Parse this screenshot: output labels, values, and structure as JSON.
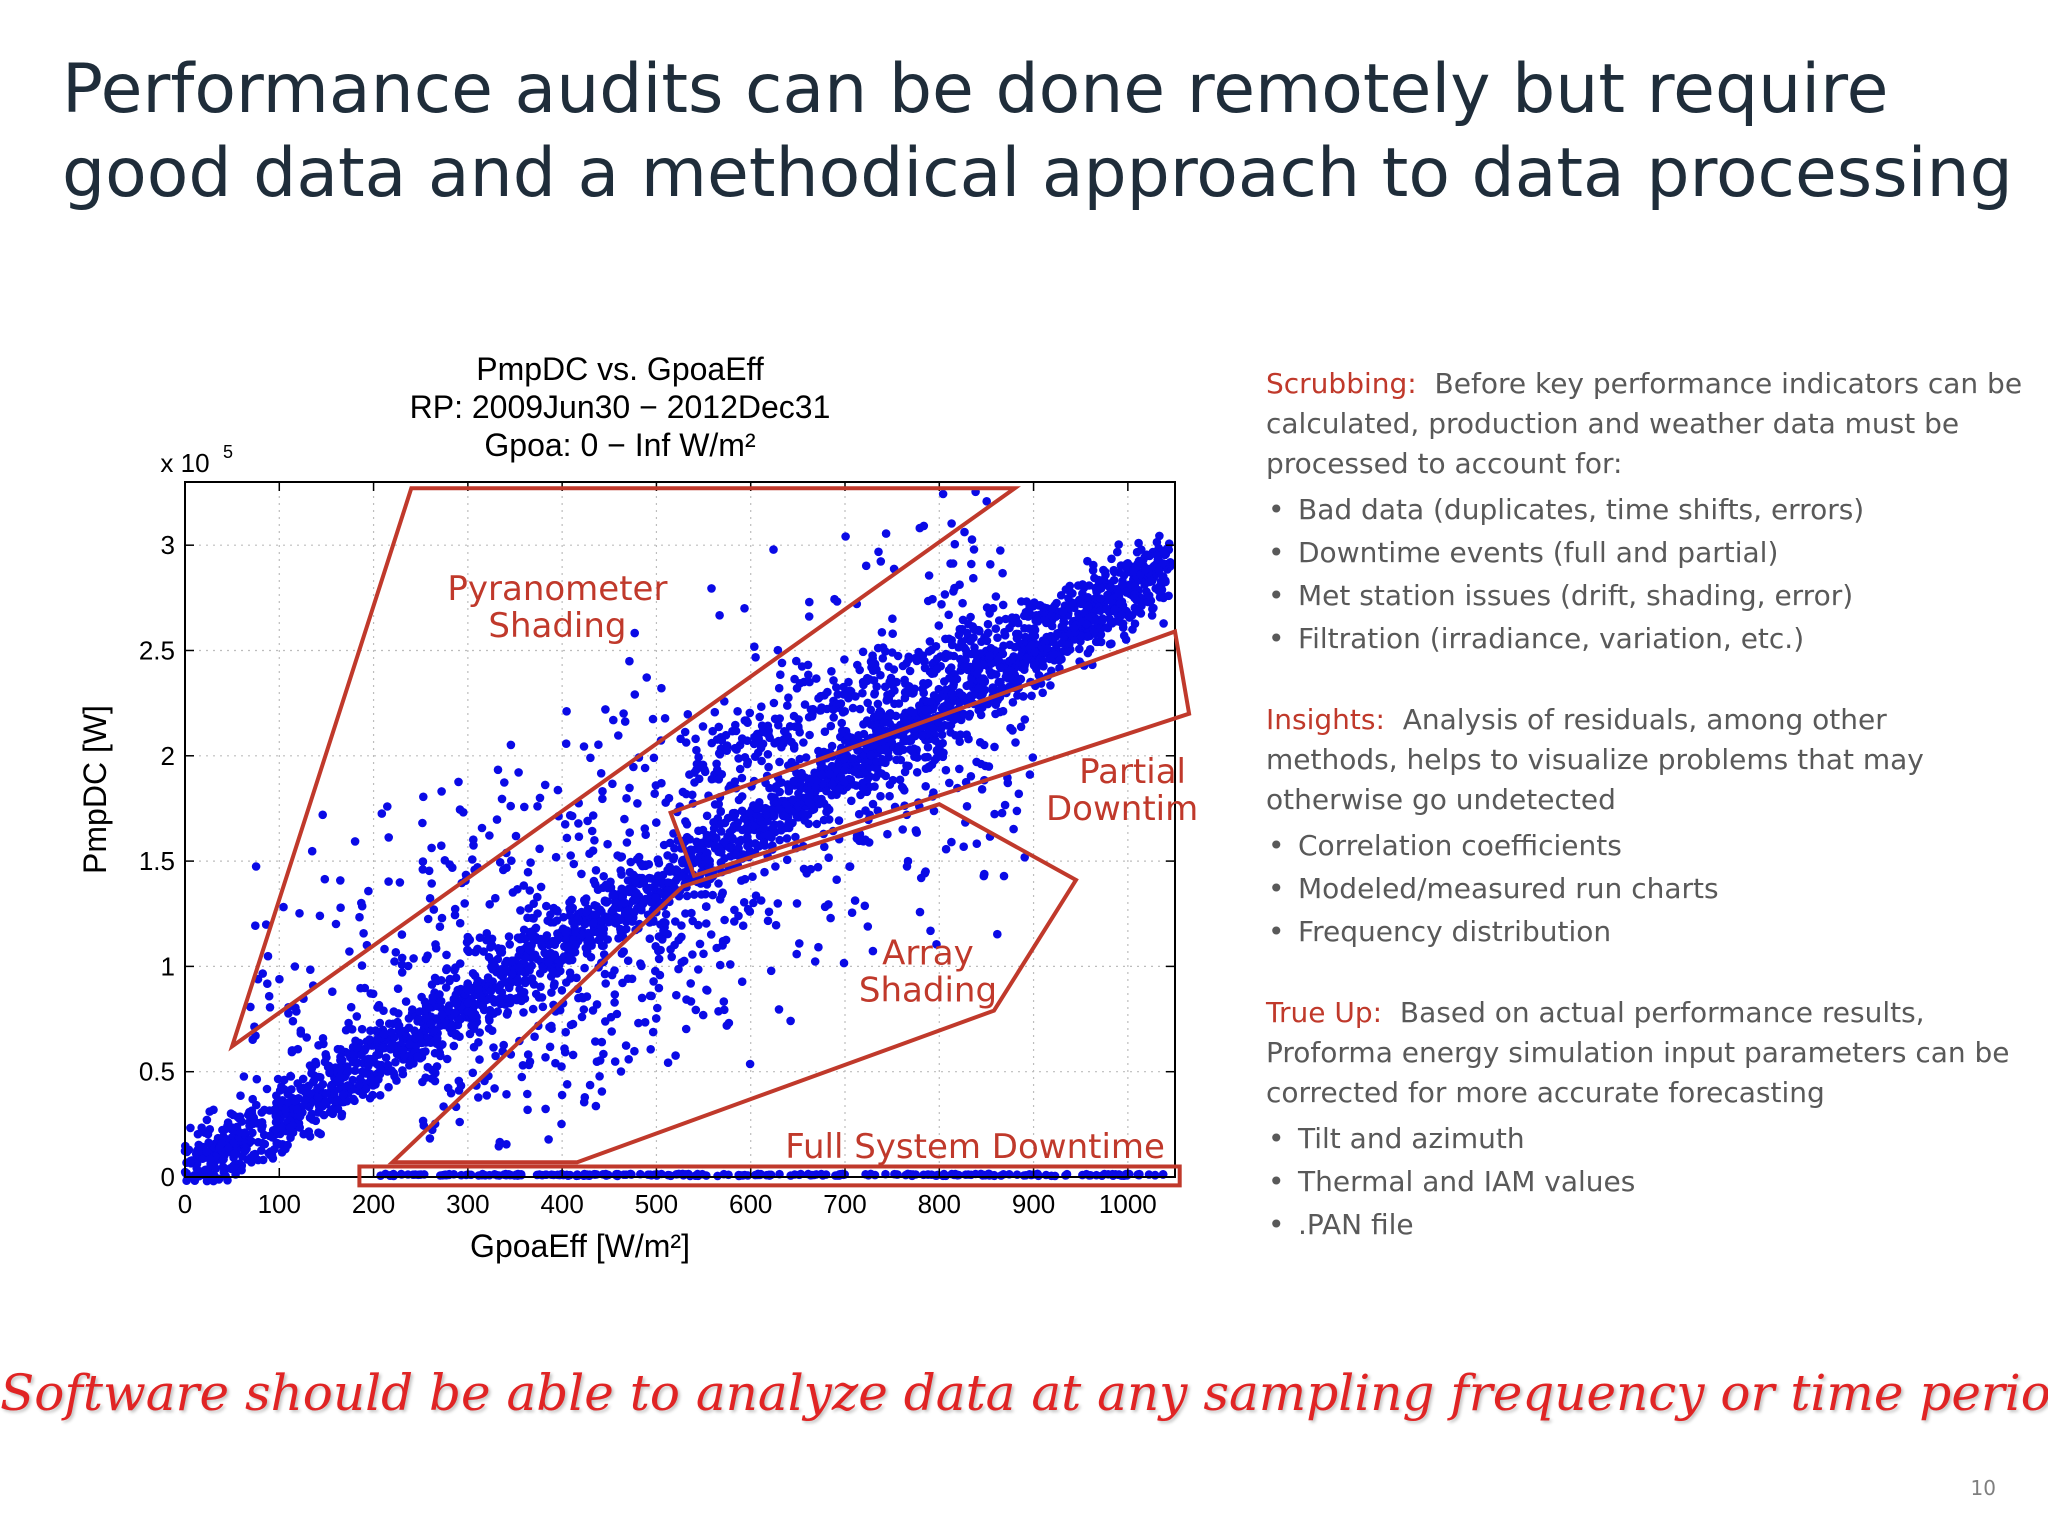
{
  "slide": {
    "title_line1": "Performance audits can be done remotely but require",
    "title_line2": "good data and a methodical approach to data processing",
    "footer": "Software should be able to analyze data at any sampling frequency or time period",
    "page_number": "10"
  },
  "panel": {
    "scrubbing": {
      "label": "Scrubbing:",
      "text": "Before key performance indicators can be calculated, production and weather data must be processed to account for:",
      "bullets": [
        "Bad data (duplicates, time shifts, errors)",
        "Downtime events (full and partial)",
        "Met station issues (drift, shading, error)",
        "Filtration (irradiance, variation, etc.)"
      ]
    },
    "insights": {
      "label": "Insights:",
      "text": "Analysis of residuals, among other methods, helps to visualize problems that may otherwise go undetected",
      "bullets": [
        "Correlation coefficients",
        "Modeled/measured run charts",
        "Frequency distribution"
      ]
    },
    "trueup": {
      "label": "True Up:",
      "text": "Based on actual performance results, Proforma energy simulation input parameters can be corrected for more accurate forecasting",
      "bullets": [
        "Tilt and azimuth",
        "Thermal and IAM values",
        ".PAN file"
      ]
    }
  },
  "chart_data": {
    "type": "scatter",
    "title": [
      "PmpDC vs. GpoaEff",
      "RP: 2009Jun30 − 2012Dec31",
      "Gpoa: 0 − Inf W/m²"
    ],
    "xlabel": "GpoaEff [W/m²]",
    "ylabel": "PmpDC [W]",
    "y_multiplier": "x 10",
    "y_multiplier_exp": "5",
    "xlim": [
      0,
      1050
    ],
    "ylim": [
      0,
      3.3
    ],
    "xticks": [
      0,
      100,
      200,
      300,
      400,
      500,
      600,
      700,
      800,
      900,
      1000
    ],
    "yticks": [
      0,
      0.5,
      1,
      1.5,
      2,
      2.5,
      3
    ],
    "ytick_labels": [
      "0",
      "0.5",
      "1",
      "1.5",
      "2",
      "2.5",
      "3"
    ],
    "grid": true,
    "marker_color": "#0a0ae6",
    "annotation_color": "#c0392b",
    "trend": [
      [
        0,
        0
      ],
      [
        1050,
        2.9
      ]
    ],
    "annotations": [
      {
        "text": [
          "Pyranometer",
          "Shading"
        ],
        "at": [
          395,
          2.74
        ],
        "region": [
          [
            50,
            0.62
          ],
          [
            240,
            3.27
          ],
          [
            880,
            3.27
          ]
        ]
      },
      {
        "text": [
          "Partial",
          "Downtime"
        ],
        "at": [
          1005,
          1.87
        ],
        "region": [
          [
            515,
            1.73
          ],
          [
            1050,
            2.59
          ],
          [
            1065,
            2.2
          ],
          [
            540,
            1.43
          ]
        ]
      },
      {
        "text": [
          "Array",
          "Shading"
        ],
        "at": [
          788,
          1.01
        ],
        "region": [
          [
            220,
            0.07
          ],
          [
            528,
            1.38
          ],
          [
            800,
            1.77
          ],
          [
            945,
            1.41
          ],
          [
            858,
            0.79
          ],
          [
            416,
            0.07
          ]
        ]
      },
      {
        "text": [
          "Full System Downtime"
        ],
        "at": [
          838,
          0.09
        ],
        "region": [
          [
            185,
            0.05
          ],
          [
            1055,
            0.05
          ],
          [
            1055,
            -0.04
          ],
          [
            185,
            -0.04
          ]
        ]
      }
    ]
  }
}
